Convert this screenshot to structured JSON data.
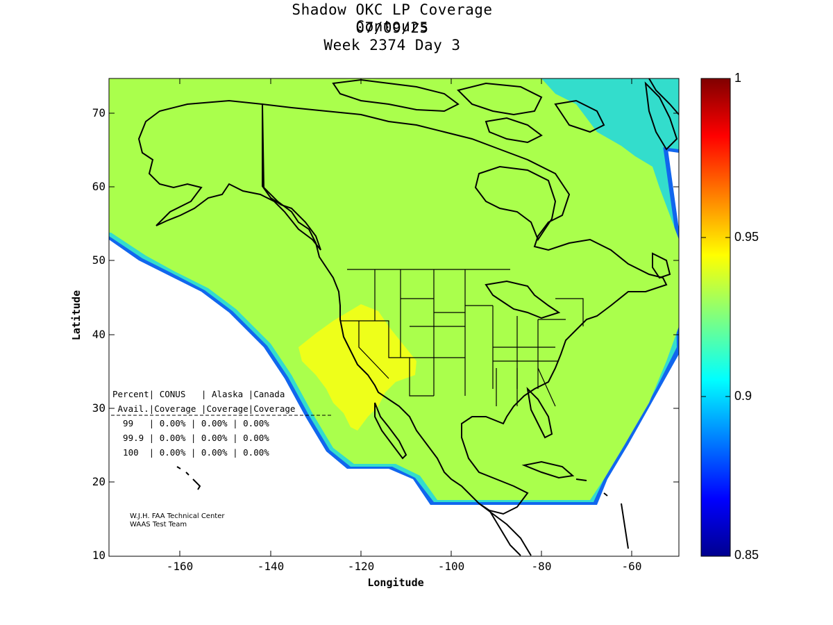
{
  "title": {
    "line1": "Shadow OKC LP Coverage Contours",
    "line2": "07/09/25",
    "line3": "Week 2374 Day 3"
  },
  "axes": {
    "xlabel": "Longitude",
    "ylabel": "Latitude",
    "x_ticks": [
      "-160",
      "-140",
      "-120",
      "-100",
      "-80",
      "-60"
    ],
    "y_ticks": [
      "70",
      "60",
      "50",
      "40",
      "30",
      "20",
      "10"
    ],
    "x_range": [
      -175,
      -50
    ],
    "y_range": [
      10,
      75
    ]
  },
  "colorbar": {
    "ticks": [
      "1",
      "0.95",
      "0.9",
      "0.85"
    ],
    "range": [
      0.85,
      1.0
    ],
    "colormap": "jet"
  },
  "colors": {
    "coverage_main": "#aaff4c",
    "coverage_high": "#eeff1a",
    "coverage_edge_cyan": "#33ddcc",
    "coverage_edge_blue": "#1166ee"
  },
  "stats_table": {
    "header1": "Percent| CONUS   | Alaska |Canada",
    "header2": " Avail.|Coverage |Coverage|Coverage",
    "rows": [
      "  99   | 0.00% | 0.00% | 0.00%",
      "  99.9 | 0.00% | 0.00% | 0.00%",
      "  100  | 0.00% | 0.00% | 0.00%"
    ]
  },
  "credits": {
    "line1": "W.J.H. FAA Technical Center",
    "line2": "WAAS Test Team"
  }
}
